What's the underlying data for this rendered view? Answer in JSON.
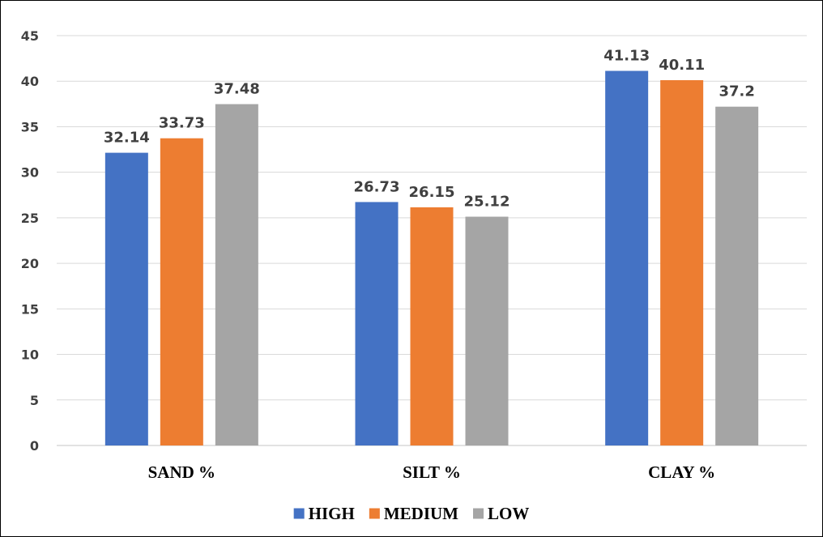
{
  "chart_data": {
    "type": "bar",
    "title": "",
    "xlabel": "",
    "ylabel": "",
    "categories": [
      "SAND %",
      "SILT %",
      "CLAY %"
    ],
    "series": [
      {
        "name": "HIGH",
        "color": "#4472C4",
        "values": [
          32.14,
          26.73,
          41.13
        ],
        "labels": [
          "32.14",
          "26.73",
          "41.13"
        ]
      },
      {
        "name": "MEDIUM",
        "color": "#ED7D31",
        "values": [
          33.73,
          26.15,
          40.11
        ],
        "labels": [
          "33.73",
          "26.15",
          "40.11"
        ]
      },
      {
        "name": "LOW",
        "color": "#A5A5A5",
        "values": [
          37.48,
          25.12,
          37.2
        ],
        "labels": [
          "37.48",
          "25.12",
          "37.2"
        ]
      }
    ],
    "ylim": [
      0,
      45
    ],
    "yticks": [
      "0",
      "5",
      "10",
      "15",
      "20",
      "25",
      "30",
      "35",
      "40",
      "45"
    ],
    "grid": true,
    "legend_position": "bottom",
    "gridline_color": "#D9D9D9"
  }
}
